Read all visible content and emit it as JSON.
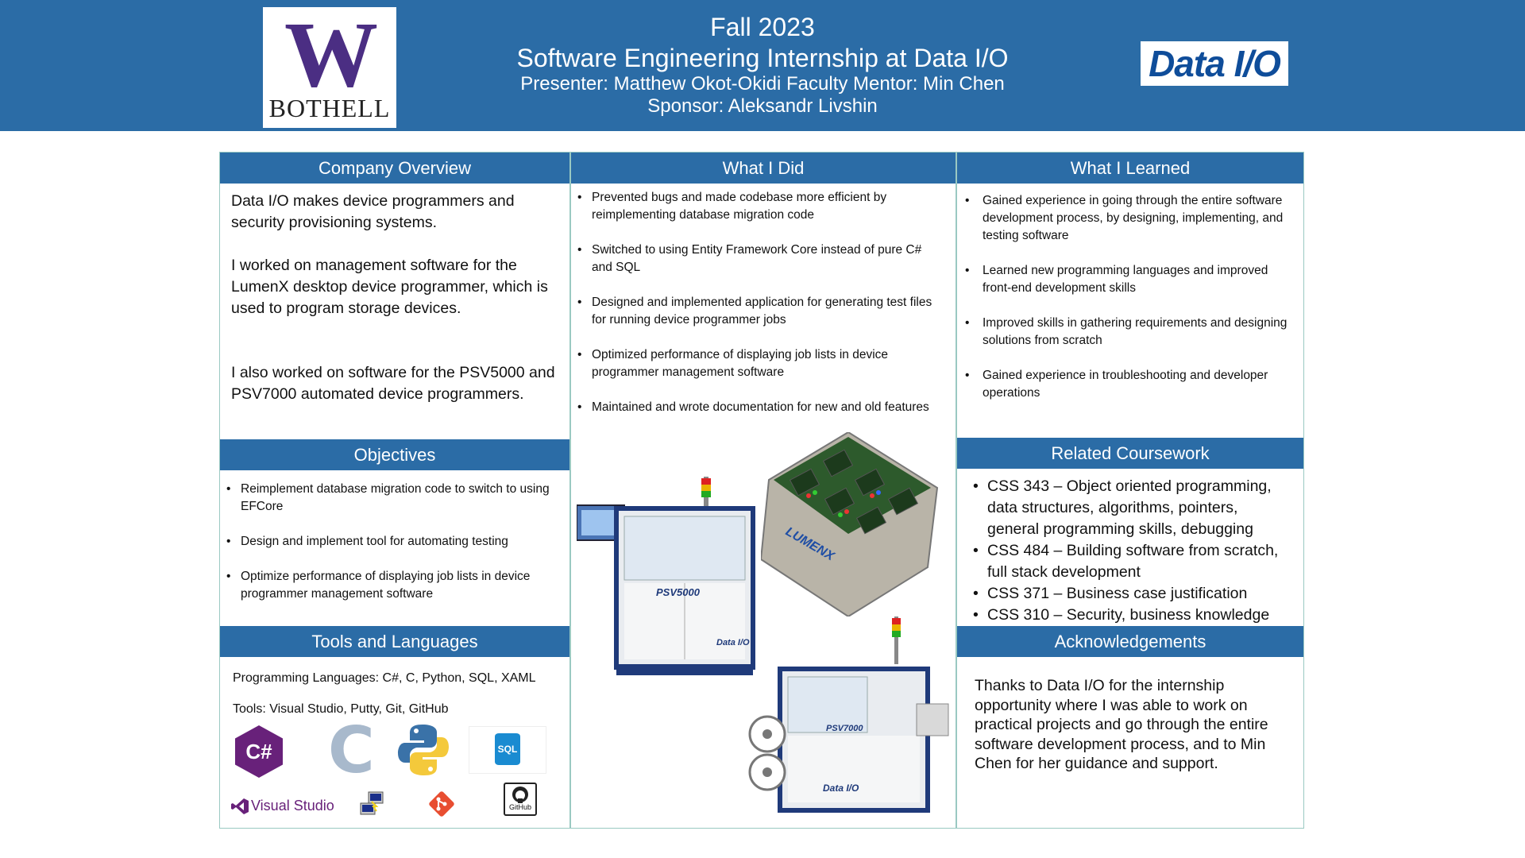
{
  "header": {
    "logo_w": "W",
    "logo_bothell": "BOTHELL",
    "line1": "Fall 2023",
    "line2": "Software Engineering Internship at Data I/O",
    "line3": "Presenter: Matthew Okot-Okidi  Faculty Mentor: Min Chen",
    "line4": "Sponsor: Aleksandr Livshin",
    "sponsor_logo": "Data I/O"
  },
  "company_overview": {
    "heading": "Company Overview",
    "p1": "Data I/O makes device programmers and security provisioning systems.",
    "p2": "I worked on management software for the LumenX desktop device programmer, which is used to program storage devices.",
    "p3": "I also worked on software for the PSV5000 and PSV7000 automated device programmers."
  },
  "objectives": {
    "heading": "Objectives",
    "items": [
      "Reimplement database migration code to switch to using EFCore",
      "Design and implement tool for automating testing",
      "Optimize performance of displaying job lists in device programmer management software"
    ]
  },
  "tools": {
    "heading": "Tools and Languages",
    "languages": "Programming Languages: C#, C, Python, SQL, XAML",
    "tools": "Tools: Visual Studio, Putty, Git, GitHub",
    "icons": {
      "csharp": "C#",
      "sql": "SQL",
      "visual_studio": "Visual Studio",
      "github": "GitHub"
    }
  },
  "what_i_did": {
    "heading": "What I Did",
    "items": [
      "Prevented bugs and made codebase more efficient by reimplementing database migration code",
      "Switched to using Entity Framework Core instead of pure C# and SQL",
      "Designed and implemented application for generating test files for running device programmer jobs",
      "Optimized performance of displaying job lists in device programmer management software",
      "Maintained and wrote documentation for new and old features"
    ],
    "machine_labels": {
      "psv5000": "PSV5000",
      "lumenx": "LUMENX",
      "psv7000": "PSV7000",
      "brand": "Data I/O"
    }
  },
  "what_i_learned": {
    "heading": "What I Learned",
    "items": [
      "Gained experience in going through the entire software development process, by designing, implementing, and testing software",
      "Learned new programming languages and improved front-end development skills",
      "Improved skills in gathering requirements and designing solutions from scratch",
      "Gained experience in troubleshooting and developer operations"
    ]
  },
  "coursework": {
    "heading": "Related Coursework",
    "items": [
      "CSS 343 – Object oriented programming, data structures, algorithms, pointers, general programming skills, debugging",
      "CSS  484 – Building software from scratch, full stack development",
      "CSS 371 – Business case justification",
      "CSS 310 – Security, business knowledge"
    ]
  },
  "acknowledgements": {
    "heading": "Acknowledgements",
    "text": "Thanks to Data I/O for the internship opportunity where I was able to work on practical projects and go through the entire software development process, and to Min Chen for her guidance and support."
  },
  "colors": {
    "banner": "#2b6ca6",
    "uw_purple": "#4b2e83",
    "border": "#9ac9c2"
  }
}
